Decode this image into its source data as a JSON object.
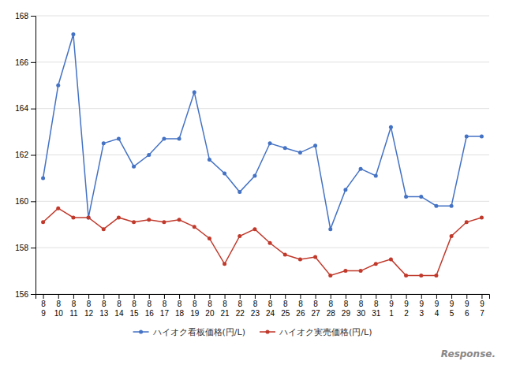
{
  "chart_data": {
    "type": "line",
    "categories": [
      "8\n9",
      "8\n10",
      "8\n11",
      "8\n12",
      "8\n13",
      "8\n14",
      "8\n15",
      "8\n16",
      "8\n17",
      "8\n18",
      "8\n19",
      "8\n20",
      "8\n21",
      "8\n22",
      "8\n23",
      "8\n24",
      "8\n25",
      "8\n26",
      "8\n27",
      "8\n28",
      "8\n29",
      "8\n30",
      "8\n31",
      "9\n1",
      "9\n2",
      "9\n3",
      "9\n4",
      "9\n5",
      "9\n6",
      "9\n7"
    ],
    "series": [
      {
        "name": "ハイオク看板価格(円/L)",
        "color": "#4472c4",
        "marker": "circle",
        "values": [
          161.0,
          165.0,
          167.2,
          159.3,
          162.5,
          162.7,
          161.5,
          162.0,
          162.7,
          162.7,
          164.7,
          161.8,
          161.2,
          160.4,
          161.1,
          162.5,
          162.3,
          162.1,
          162.4,
          158.8,
          160.5,
          161.4,
          161.1,
          163.2,
          160.2,
          160.2,
          159.8,
          159.8,
          162.8,
          162.8
        ]
      },
      {
        "name": "ハイオク実売価格(円/L)",
        "color": "#c0392b",
        "marker": "circle",
        "values": [
          159.1,
          159.7,
          159.3,
          159.3,
          158.8,
          159.3,
          159.1,
          159.2,
          159.1,
          159.2,
          158.9,
          158.4,
          157.3,
          158.5,
          158.8,
          158.2,
          157.7,
          157.5,
          157.6,
          156.8,
          157.0,
          157.0,
          157.3,
          157.5,
          156.8,
          156.8,
          156.8,
          158.5,
          159.1,
          159.3
        ]
      }
    ],
    "ylim": [
      156,
      168
    ],
    "yticks": [
      156,
      158,
      160,
      162,
      164,
      166,
      168
    ],
    "grid": true,
    "legend": "bottom",
    "annotations": [
      "Response."
    ]
  }
}
